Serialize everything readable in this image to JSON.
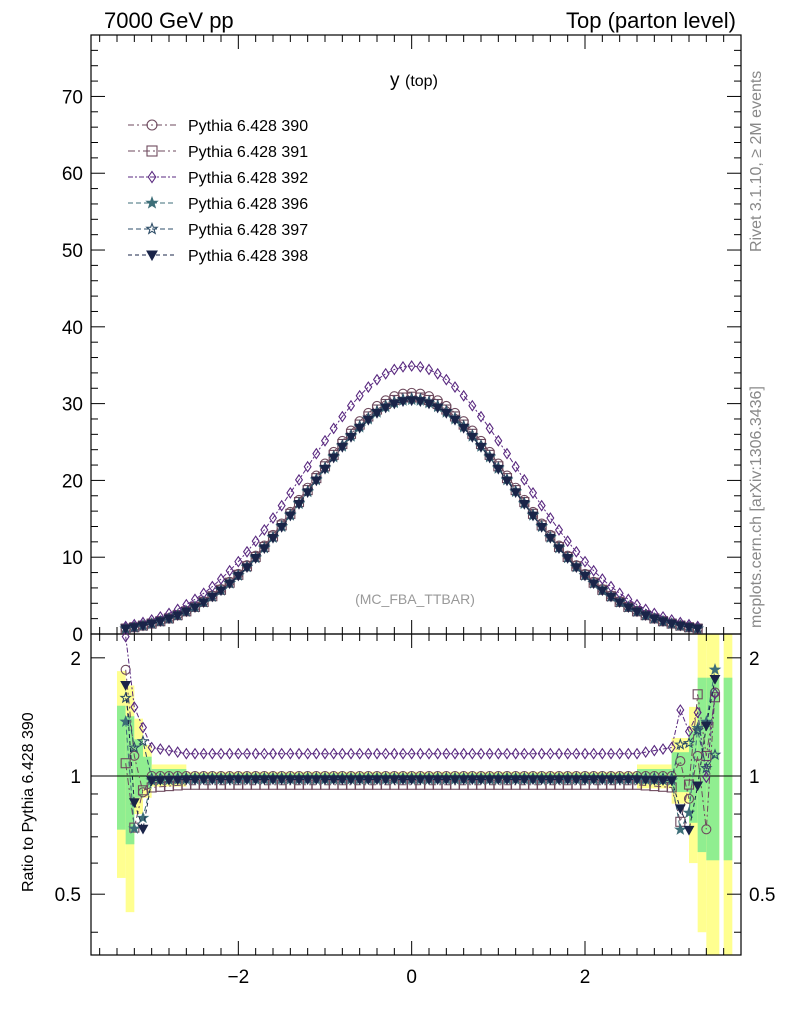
{
  "header": {
    "left": "7000 GeV pp",
    "right": "Top (parton level)"
  },
  "side_labels": {
    "rivet": "Rivet 3.1.10, ≥ 2M events",
    "mcplots": "mcplots.cern.ch [arXiv:1306.3436]"
  },
  "chart_data": {
    "type": "line",
    "title": "y",
    "title_sub": "(top)",
    "watermark": "(MC_FBA_TTBAR)",
    "ratio_ylabel": "Ratio to Pythia 6.428 390",
    "xlim": [
      -3.7,
      3.8
    ],
    "ylim": [
      0,
      78
    ],
    "ratio_ylim": [
      0.35,
      2.3
    ],
    "x_ticks": [
      -2,
      0,
      2
    ],
    "x_tick_labels": [
      "−2",
      "0",
      "2"
    ],
    "y_ticks": [
      0,
      10,
      20,
      30,
      40,
      50,
      60,
      70
    ],
    "y_tick_labels": [
      "0",
      "10",
      "20",
      "30",
      "40",
      "50",
      "60",
      "70"
    ],
    "ratio_ticks": [
      0.5,
      1,
      2
    ],
    "ratio_tick_labels": [
      "0.5",
      "1",
      "2"
    ],
    "legend_position": "top-left",
    "peak_values": {
      "390": 31.4,
      "391": 30.9,
      "392": 34.9,
      "396": 30.5,
      "397": 30.7,
      "398": 30.4
    },
    "curve_width": 1.2,
    "series": [
      {
        "name": "Pythia 6.428 390",
        "id": "390",
        "color": "#6e4a5e",
        "marker": "circle",
        "dash": "6,3,2,3"
      },
      {
        "name": "Pythia 6.428 391",
        "id": "391",
        "color": "#6e4a5e",
        "marker": "square",
        "dash": "7,3,2,3"
      },
      {
        "name": "Pythia 6.428 392",
        "id": "392",
        "color": "#5a2a80",
        "marker": "diamond",
        "dash": "5,2,2,2"
      },
      {
        "name": "Pythia 6.428 396",
        "id": "396",
        "color": "#3d6e78",
        "marker": "star-filled",
        "dash": "5,3"
      },
      {
        "name": "Pythia 6.428 397",
        "id": "397",
        "color": "#2e4e68",
        "marker": "star-open",
        "dash": "5,3"
      },
      {
        "name": "Pythia 6.428 398",
        "id": "398",
        "color": "#1a2448",
        "marker": "triangle-down",
        "dash": "4,3"
      }
    ],
    "ratio_levels": {
      "390": 1.0,
      "391": 0.95,
      "392": 1.14,
      "396": 0.98,
      "397": 0.99,
      "398": 0.98
    }
  }
}
